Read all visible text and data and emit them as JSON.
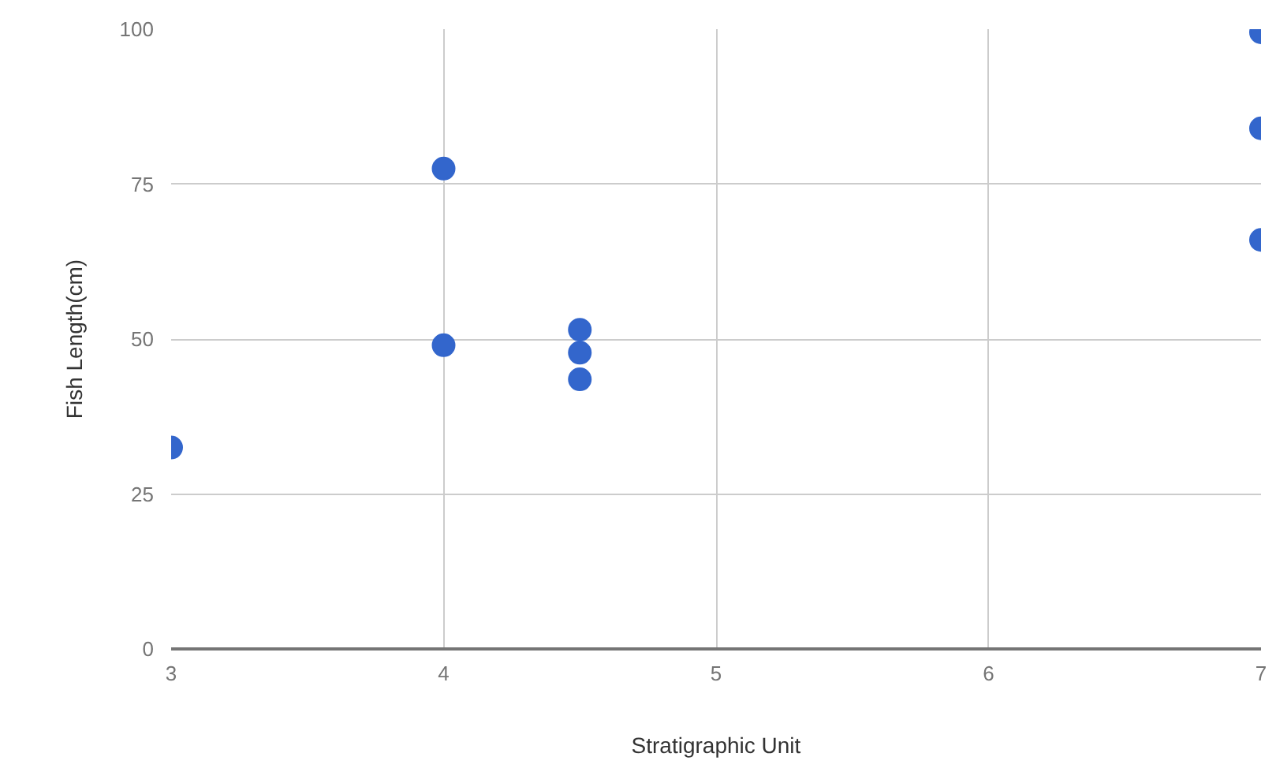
{
  "chart_data": {
    "type": "scatter",
    "xlabel": "Stratigraphic Unit",
    "ylabel": "Fish Length(cm)",
    "x": [
      3,
      4,
      4,
      4.5,
      4.5,
      4.5,
      7,
      7,
      7
    ],
    "series": [
      {
        "color": "#3366cc",
        "values": [
          32.5,
          77.5,
          49,
          51.5,
          47.8,
          43.5,
          99.5,
          84,
          66
        ]
      }
    ],
    "xlim": [
      3,
      7
    ],
    "xticks": [
      3,
      4,
      5,
      6,
      7
    ],
    "ylim": [
      0,
      100
    ],
    "yticks": [
      0,
      25,
      50,
      75,
      100
    ],
    "grid": true,
    "marker": "circle"
  }
}
